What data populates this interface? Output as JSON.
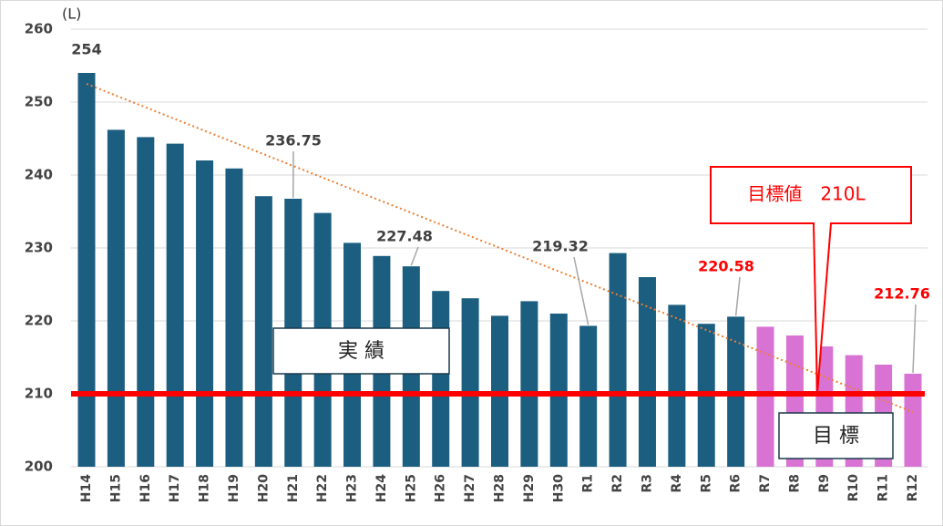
{
  "chart_data": {
    "type": "bar",
    "y_unit": "(L)",
    "categories": [
      "H14",
      "H15",
      "H16",
      "H17",
      "H18",
      "H19",
      "H20",
      "H21",
      "H22",
      "H23",
      "H24",
      "H25",
      "H26",
      "H27",
      "H28",
      "H29",
      "H30",
      "R1",
      "R2",
      "R3",
      "R4",
      "R5",
      "R6",
      "R7",
      "R8",
      "R9",
      "R10",
      "R11",
      "R12"
    ],
    "series": [
      {
        "name": "実 績",
        "color": "#1b5e80",
        "values": [
          254,
          246.2,
          245.2,
          244.3,
          242,
          240.9,
          237.1,
          236.75,
          234.8,
          230.7,
          228.9,
          227.48,
          224.1,
          223.1,
          220.7,
          222.7,
          221,
          219.32,
          229.3,
          226,
          222.2,
          219.6,
          220.58,
          null,
          null,
          null,
          null,
          null,
          null
        ],
        "value_labels": [
          "254",
          null,
          null,
          null,
          null,
          null,
          null,
          "236.75",
          null,
          null,
          null,
          "227.48",
          null,
          null,
          null,
          null,
          null,
          "219.32",
          null,
          null,
          null,
          null,
          "220.58",
          null,
          null,
          null,
          null,
          null,
          null
        ]
      },
      {
        "name": "目 標",
        "color": "#d873d3",
        "values": [
          null,
          null,
          null,
          null,
          null,
          null,
          null,
          null,
          null,
          null,
          null,
          null,
          null,
          null,
          null,
          null,
          null,
          null,
          null,
          null,
          null,
          null,
          null,
          219.2,
          218,
          216.5,
          215.3,
          214,
          212.76
        ],
        "value_labels": [
          null,
          null,
          null,
          null,
          null,
          null,
          null,
          null,
          null,
          null,
          null,
          null,
          null,
          null,
          null,
          null,
          null,
          null,
          null,
          null,
          null,
          null,
          null,
          null,
          null,
          null,
          null,
          null,
          "212.76"
        ]
      }
    ],
    "highlights": [
      "R6",
      "R12"
    ],
    "highlight_color": "#ff0000",
    "label_color": "#404040",
    "target": {
      "value": 210,
      "label": "目標値　210L",
      "color": "#ff0000"
    },
    "trendline": {
      "start": 252.5,
      "end": 207.5,
      "color": "#ed7d31"
    },
    "ylim": [
      200,
      260
    ],
    "yticks": [
      200,
      210,
      220,
      230,
      240,
      250,
      260
    ],
    "grid": true
  }
}
